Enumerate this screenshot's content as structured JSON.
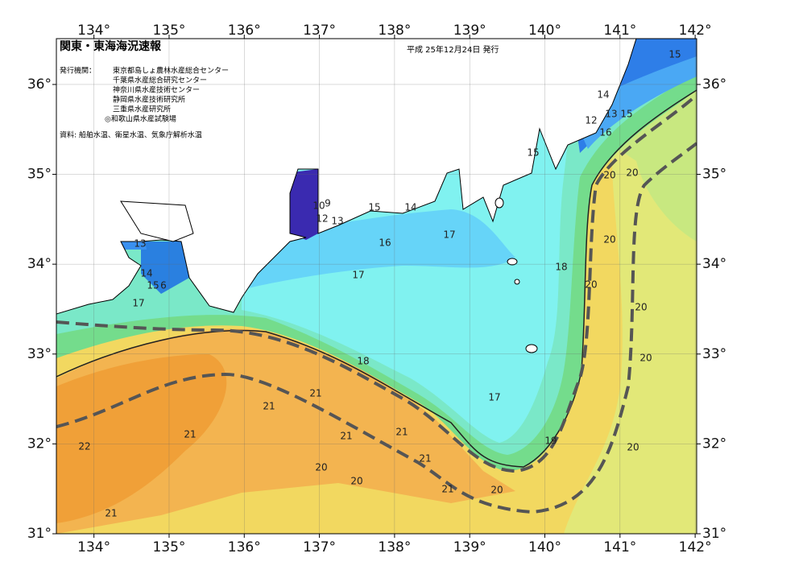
{
  "header": {
    "title": "関東・東海海況速報",
    "date": "平成 25年12月24日 発行"
  },
  "issuers": {
    "label": "発行機関：",
    "items": [
      "東京都島しょ農林水産総合センター",
      "千葉県水産総合研究センター",
      "神奈川県水産技術センター",
      "静岡県水産技術研究所",
      "三重県水産研究所",
      "◎和歌山県水産試験場"
    ]
  },
  "source": "資料: 船舶水温、衛星水温、気象庁解析水温",
  "map": {
    "lon_range": [
      133.5,
      142.02
    ],
    "lat_range": [
      31,
      36.51
    ],
    "lon_ticks": [
      {
        "value": 134,
        "label": "134°"
      },
      {
        "value": 135,
        "label": "135°"
      },
      {
        "value": 136,
        "label": "136°"
      },
      {
        "value": 137,
        "label": "137°"
      },
      {
        "value": 138,
        "label": "138°"
      },
      {
        "value": 139,
        "label": "139°"
      },
      {
        "value": 140,
        "label": "140°"
      },
      {
        "value": 141,
        "label": "141°"
      },
      {
        "value": 142,
        "label": "142°"
      }
    ],
    "lat_ticks": [
      {
        "value": 31,
        "label": "31°"
      },
      {
        "value": 32,
        "label": "32°"
      },
      {
        "value": 33,
        "label": "33°"
      },
      {
        "value": 34,
        "label": "34°"
      },
      {
        "value": 35,
        "label": "35°"
      },
      {
        "value": 36,
        "label": "36°"
      }
    ],
    "grid": true,
    "contour_labels": [
      "15",
      "14",
      "13",
      "15",
      "12",
      "16",
      "15",
      "20",
      "20",
      "20",
      "20",
      "20",
      "20",
      "20",
      "19",
      "17",
      "18",
      "18",
      "17",
      "16",
      "17",
      "15",
      "14",
      "10",
      "9",
      "12",
      "13",
      "13",
      "14",
      "15",
      "6",
      "17",
      "21",
      "21",
      "21",
      "21",
      "21",
      "21",
      "21",
      "21",
      "22",
      "20",
      "20",
      "20"
    ]
  }
}
